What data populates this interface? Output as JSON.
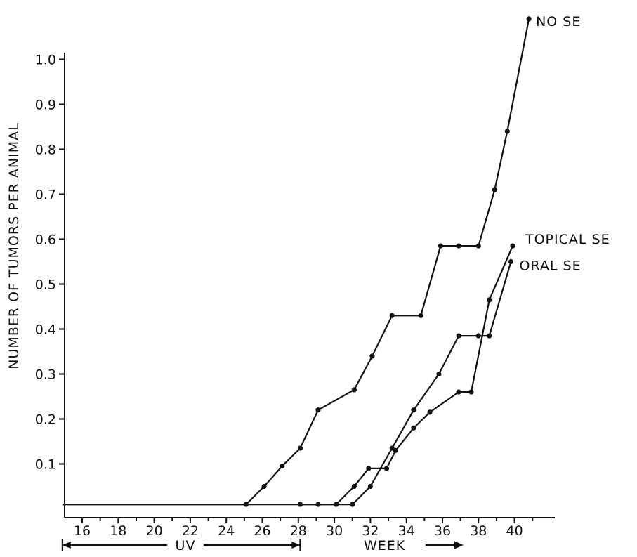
{
  "chart_data": {
    "type": "line",
    "title": "",
    "ylabel": "NUMBER OF TUMORS PER ANIMAL",
    "xlabel": "WEEK",
    "uv_label": "UV",
    "uv_range": [
      14.9,
      28.1
    ],
    "xlim": [
      14.9,
      41.5
    ],
    "ylim": [
      0,
      1.08
    ],
    "xticks": [
      16,
      18,
      20,
      22,
      24,
      26,
      28,
      30,
      32,
      34,
      36,
      38,
      40
    ],
    "xtick_labels": [
      "16",
      "18",
      "20",
      "22",
      "24",
      "26",
      "28",
      "30",
      "32",
      "34",
      "36",
      "38",
      "40"
    ],
    "yticks": [
      0.1,
      0.2,
      0.3,
      0.4,
      0.5,
      0.6,
      0.7,
      0.8,
      0.9,
      1.0
    ],
    "ytick_labels": [
      "0.1",
      "0.2",
      "0.3",
      "0.4",
      "0.5",
      "0.6",
      "0.7",
      "0.8",
      "0.9",
      "1.0"
    ],
    "grid": false,
    "series": [
      {
        "name": "NO SE",
        "points": [
          [
            14.9,
            0.01
          ],
          [
            25.1,
            0.01
          ],
          [
            26.1,
            0.05
          ],
          [
            27.1,
            0.095
          ],
          [
            28.1,
            0.135
          ],
          [
            29.1,
            0.22
          ],
          [
            31.1,
            0.265
          ],
          [
            32.1,
            0.34
          ],
          [
            33.2,
            0.43
          ],
          [
            34.8,
            0.43
          ],
          [
            35.9,
            0.585
          ],
          [
            36.9,
            0.585
          ],
          [
            38.0,
            0.585
          ],
          [
            38.9,
            0.71
          ],
          [
            39.6,
            0.84
          ],
          [
            40.8,
            1.09
          ]
        ]
      },
      {
        "name": "TOPICAL SE",
        "points": [
          [
            28.1,
            0.01
          ],
          [
            29.1,
            0.01
          ],
          [
            30.1,
            0.01
          ],
          [
            31.1,
            0.05
          ],
          [
            31.9,
            0.09
          ],
          [
            32.9,
            0.09
          ],
          [
            33.4,
            0.13
          ],
          [
            34.4,
            0.18
          ],
          [
            35.3,
            0.215
          ],
          [
            36.9,
            0.26
          ],
          [
            37.6,
            0.26
          ],
          [
            38.6,
            0.465
          ],
          [
            39.9,
            0.585
          ]
        ]
      },
      {
        "name": "ORAL SE",
        "points": [
          [
            14.9,
            0.01
          ],
          [
            31.0,
            0.01
          ],
          [
            32.0,
            0.05
          ],
          [
            33.2,
            0.135
          ],
          [
            34.4,
            0.22
          ],
          [
            35.8,
            0.3
          ],
          [
            36.9,
            0.385
          ],
          [
            38.0,
            0.385
          ],
          [
            38.6,
            0.385
          ],
          [
            39.8,
            0.55
          ]
        ]
      }
    ]
  }
}
